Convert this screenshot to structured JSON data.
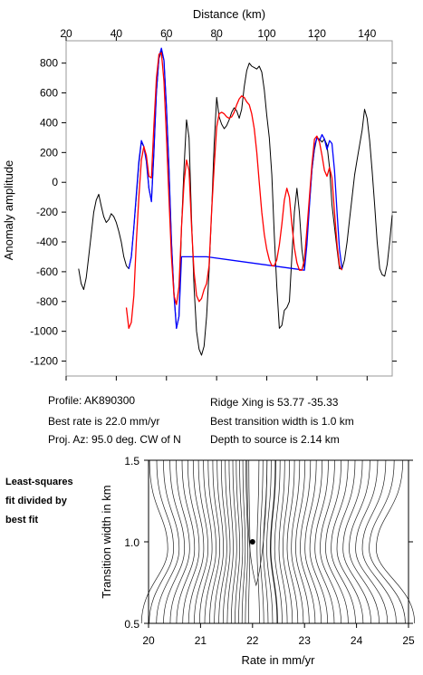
{
  "chart_data": [
    {
      "type": "line",
      "xlabel": "Distance (km)",
      "ylabel": "Anomaly amplitude",
      "xlim": [
        20,
        150
      ],
      "ylim": [
        -1300,
        950
      ],
      "x_ticks": [
        20,
        40,
        60,
        80,
        100,
        120,
        140
      ],
      "y_ticks": [
        800,
        600,
        400,
        200,
        0,
        -200,
        -400,
        -600,
        -800,
        -1000,
        -1200
      ],
      "grid": false,
      "series": [
        {
          "color": "#000000",
          "points": [
            [
              25,
              -580
            ],
            [
              26,
              -680
            ],
            [
              27,
              -720
            ],
            [
              28,
              -640
            ],
            [
              29,
              -500
            ],
            [
              30,
              -350
            ],
            [
              31,
              -200
            ],
            [
              32,
              -120
            ],
            [
              33,
              -80
            ],
            [
              34,
              -160
            ],
            [
              35,
              -230
            ],
            [
              36,
              -270
            ],
            [
              37,
              -250
            ],
            [
              38,
              -210
            ],
            [
              39,
              -230
            ],
            [
              40,
              -270
            ],
            [
              41,
              -330
            ],
            [
              42,
              -400
            ],
            [
              43,
              -500
            ],
            [
              44,
              -560
            ],
            [
              45,
              -580
            ],
            [
              46,
              -500
            ],
            [
              47,
              -300
            ],
            [
              48,
              -100
            ],
            [
              49,
              120
            ],
            [
              50,
              270
            ],
            [
              51,
              240
            ],
            [
              52,
              150
            ],
            [
              53,
              -40
            ],
            [
              54,
              -120
            ],
            [
              55,
              200
            ],
            [
              56,
              600
            ],
            [
              57,
              830
            ],
            [
              58,
              880
            ],
            [
              59,
              820
            ],
            [
              60,
              500
            ],
            [
              61,
              100
            ],
            [
              62,
              -400
            ],
            [
              63,
              -740
            ],
            [
              64,
              -980
            ],
            [
              65,
              -900
            ],
            [
              66,
              -300
            ],
            [
              67,
              100
            ],
            [
              68,
              420
            ],
            [
              69,
              300
            ],
            [
              70,
              -250
            ],
            [
              71,
              -700
            ],
            [
              72,
              -1000
            ],
            [
              73,
              -1120
            ],
            [
              74,
              -1160
            ],
            [
              75,
              -1100
            ],
            [
              76,
              -900
            ],
            [
              77,
              -600
            ],
            [
              78,
              -200
            ],
            [
              79,
              250
            ],
            [
              80,
              570
            ],
            [
              81,
              440
            ],
            [
              82,
              390
            ],
            [
              83,
              360
            ],
            [
              84,
              380
            ],
            [
              85,
              420
            ],
            [
              86,
              470
            ],
            [
              87,
              500
            ],
            [
              88,
              480
            ],
            [
              89,
              430
            ],
            [
              90,
              490
            ],
            [
              91,
              640
            ],
            [
              92,
              750
            ],
            [
              93,
              800
            ],
            [
              94,
              780
            ],
            [
              95,
              770
            ],
            [
              96,
              760
            ],
            [
              97,
              780
            ],
            [
              98,
              740
            ],
            [
              99,
              620
            ],
            [
              100,
              450
            ],
            [
              101,
              300
            ],
            [
              102,
              50
            ],
            [
              103,
              -350
            ],
            [
              104,
              -700
            ],
            [
              105,
              -980
            ],
            [
              106,
              -960
            ],
            [
              107,
              -860
            ],
            [
              108,
              -840
            ],
            [
              109,
              -800
            ],
            [
              110,
              -500
            ],
            [
              111,
              -200
            ],
            [
              112,
              -40
            ],
            [
              113,
              -200
            ],
            [
              114,
              -450
            ],
            [
              115,
              -580
            ],
            [
              116,
              -400
            ],
            [
              117,
              -150
            ],
            [
              118,
              80
            ],
            [
              119,
              220
            ],
            [
              120,
              300
            ],
            [
              121,
              290
            ],
            [
              122,
              270
            ],
            [
              123,
              290
            ],
            [
              124,
              250
            ],
            [
              125,
              100
            ],
            [
              126,
              -150
            ],
            [
              127,
              -300
            ],
            [
              128,
              -450
            ],
            [
              129,
              -580
            ],
            [
              130,
              -580
            ],
            [
              131,
              -520
            ],
            [
              132,
              -400
            ],
            [
              133,
              -250
            ],
            [
              134,
              -100
            ],
            [
              135,
              50
            ],
            [
              136,
              150
            ],
            [
              137,
              250
            ],
            [
              138,
              350
            ],
            [
              139,
              490
            ],
            [
              140,
              430
            ],
            [
              141,
              280
            ],
            [
              142,
              80
            ],
            [
              143,
              -150
            ],
            [
              144,
              -400
            ],
            [
              145,
              -580
            ],
            [
              146,
              -620
            ],
            [
              147,
              -630
            ],
            [
              148,
              -550
            ],
            [
              149,
              -400
            ],
            [
              150,
              -220
            ]
          ]
        },
        {
          "color": "#0000ff",
          "points": [
            [
              45,
              -580
            ],
            [
              46,
              -500
            ],
            [
              47,
              -300
            ],
            [
              48,
              -80
            ],
            [
              49,
              140
            ],
            [
              50,
              280
            ],
            [
              51,
              240
            ],
            [
              52,
              140
            ],
            [
              53,
              -40
            ],
            [
              54,
              -130
            ],
            [
              55,
              200
            ],
            [
              56,
              610
            ],
            [
              57,
              840
            ],
            [
              58,
              900
            ],
            [
              59,
              820
            ],
            [
              60,
              500
            ],
            [
              61,
              100
            ],
            [
              62,
              -400
            ],
            [
              63,
              -760
            ],
            [
              64,
              -980
            ],
            [
              65,
              -900
            ],
            [
              66,
              -500
            ],
            [
              76,
              -500
            ],
            [
              115,
              -590
            ],
            [
              116,
              -420
            ],
            [
              117,
              -160
            ],
            [
              118,
              90
            ],
            [
              119,
              240
            ],
            [
              120,
              300
            ],
            [
              121,
              280
            ],
            [
              122,
              320
            ],
            [
              123,
              290
            ],
            [
              124,
              220
            ],
            [
              125,
              280
            ],
            [
              126,
              260
            ],
            [
              127,
              80
            ],
            [
              128,
              -200
            ],
            [
              129,
              -450
            ],
            [
              130,
              -580
            ]
          ]
        },
        {
          "color": "#ff0000",
          "points": [
            [
              44,
              -840
            ],
            [
              45,
              -980
            ],
            [
              46,
              -940
            ],
            [
              47,
              -760
            ],
            [
              48,
              -400
            ],
            [
              49,
              -100
            ],
            [
              50,
              150
            ],
            [
              51,
              240
            ],
            [
              52,
              180
            ],
            [
              53,
              40
            ],
            [
              54,
              30
            ],
            [
              55,
              380
            ],
            [
              56,
              700
            ],
            [
              57,
              860
            ],
            [
              58,
              870
            ],
            [
              59,
              680
            ],
            [
              60,
              300
            ],
            [
              61,
              -100
            ],
            [
              62,
              -500
            ],
            [
              63,
              -760
            ],
            [
              64,
              -820
            ],
            [
              65,
              -700
            ],
            [
              66,
              -300
            ],
            [
              67,
              0
            ],
            [
              68,
              150
            ],
            [
              69,
              80
            ],
            [
              70,
              -300
            ],
            [
              71,
              -600
            ],
            [
              72,
              -760
            ],
            [
              73,
              -800
            ],
            [
              74,
              -780
            ],
            [
              75,
              -720
            ],
            [
              76,
              -680
            ],
            [
              77,
              -560
            ],
            [
              78,
              -200
            ],
            [
              79,
              100
            ],
            [
              80,
              370
            ],
            [
              81,
              460
            ],
            [
              82,
              470
            ],
            [
              83,
              460
            ],
            [
              84,
              440
            ],
            [
              85,
              430
            ],
            [
              86,
              440
            ],
            [
              87,
              470
            ],
            [
              88,
              520
            ],
            [
              89,
              560
            ],
            [
              90,
              580
            ],
            [
              91,
              570
            ],
            [
              92,
              540
            ],
            [
              93,
              520
            ],
            [
              94,
              460
            ],
            [
              95,
              360
            ],
            [
              96,
              200
            ],
            [
              97,
              0
            ],
            [
              98,
              -200
            ],
            [
              99,
              -350
            ],
            [
              100,
              -450
            ],
            [
              101,
              -520
            ],
            [
              102,
              -560
            ],
            [
              103,
              -560
            ],
            [
              104,
              -520
            ],
            [
              105,
              -420
            ],
            [
              106,
              -280
            ],
            [
              107,
              -120
            ],
            [
              108,
              -40
            ],
            [
              109,
              -100
            ],
            [
              110,
              -280
            ],
            [
              111,
              -440
            ],
            [
              112,
              -540
            ],
            [
              113,
              -590
            ],
            [
              114,
              -590
            ],
            [
              115,
              -520
            ],
            [
              116,
              -320
            ],
            [
              117,
              -100
            ],
            [
              118,
              120
            ],
            [
              119,
              290
            ],
            [
              120,
              310
            ],
            [
              121,
              270
            ],
            [
              122,
              180
            ],
            [
              123,
              80
            ],
            [
              124,
              40
            ],
            [
              125,
              100
            ],
            [
              126,
              30
            ],
            [
              127,
              -200
            ],
            [
              128,
              -420
            ],
            [
              129,
              -560
            ],
            [
              130,
              -590
            ]
          ]
        }
      ]
    },
    {
      "type": "contour",
      "xlabel": "Rate in mm/yr",
      "ylabel": "Transition width in km",
      "xlim": [
        20,
        25
      ],
      "ylim": [
        0.5,
        1.5
      ],
      "x_ticks": [
        20,
        21,
        22,
        23,
        24,
        25
      ],
      "y_ticks": [
        1.5,
        1.0,
        0.5
      ],
      "minimum": [
        22.0,
        1.0
      ],
      "grid": false
    }
  ],
  "info": {
    "profile": "Profile: AK890300",
    "best_rate": "Best rate is 22.0 mm/yr",
    "proj_az": "Proj. Az: 95.0 deg. CW of N",
    "ridge_xing": "Ridge Xing is 53.77 -35.33",
    "best_transition": "Best transition width is 1.0 km",
    "depth": "Depth to source is   2.14 km"
  },
  "side_note": [
    "Least-squares",
    "fit divided by",
    "best fit"
  ]
}
